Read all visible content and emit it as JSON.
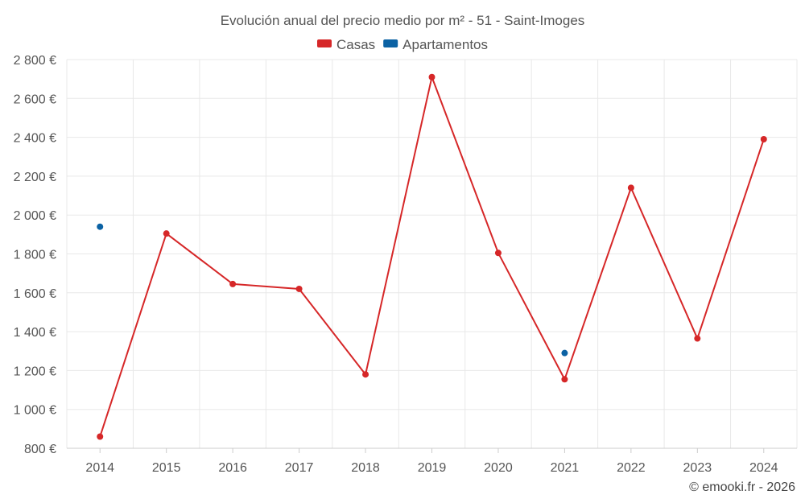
{
  "chart_data": {
    "type": "line",
    "title": "Evolución anual del precio medio por m² - 51 - Saint-Imoges",
    "categories": [
      "2014",
      "2015",
      "2016",
      "2017",
      "2018",
      "2019",
      "2020",
      "2021",
      "2022",
      "2023",
      "2024"
    ],
    "series": [
      {
        "name": "Casas",
        "color": "#d62728",
        "values": [
          860,
          1905,
          1645,
          1620,
          1180,
          2710,
          1805,
          1155,
          2140,
          1365,
          2390
        ]
      },
      {
        "name": "Apartamentos",
        "color": "#0b62a4",
        "values": [
          1940,
          null,
          null,
          null,
          null,
          null,
          null,
          1290,
          null,
          null,
          null
        ]
      }
    ],
    "ylim": [
      800,
      2800
    ],
    "yticks": [
      800,
      1000,
      1200,
      1400,
      1600,
      1800,
      2000,
      2200,
      2400,
      2600,
      2800
    ],
    "ytick_labels": [
      "800 €",
      "1 000 €",
      "1 200 €",
      "1 400 €",
      "1 600 €",
      "1 800 €",
      "2 000 €",
      "2 200 €",
      "2 400 €",
      "2 600 €",
      "2 800 €"
    ],
    "grid": true,
    "legend": "top-center"
  },
  "credit": "© emooki.fr - 2026"
}
